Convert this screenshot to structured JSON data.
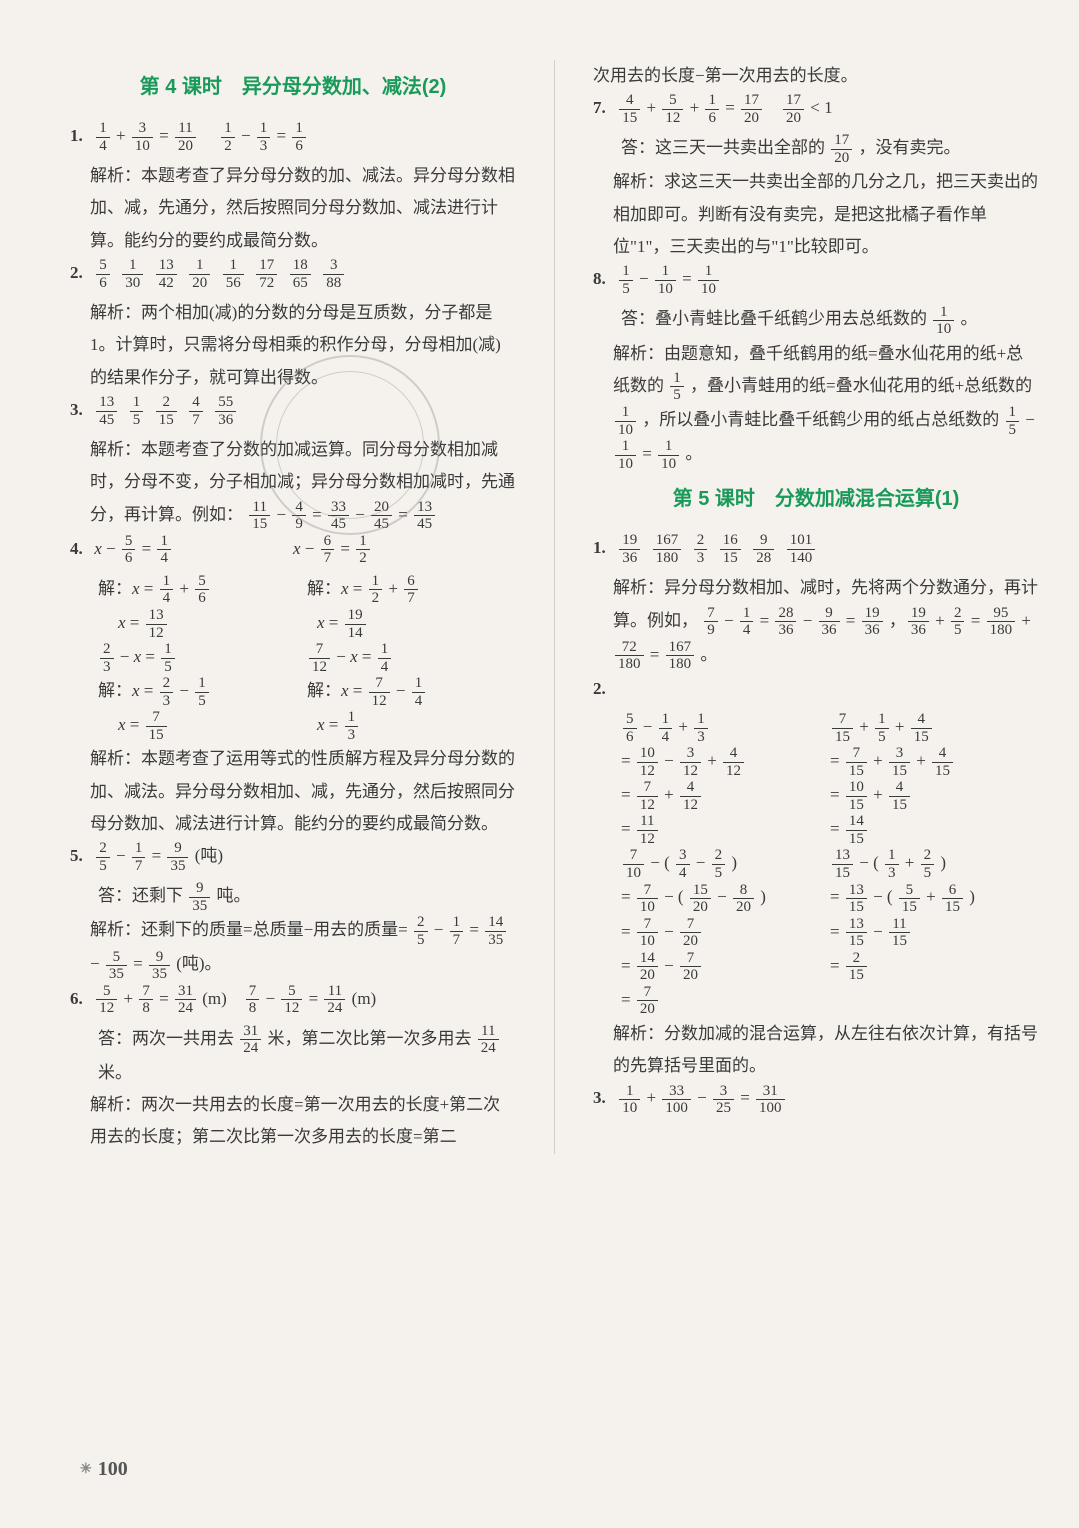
{
  "page_number": "100",
  "left": {
    "title": "第 4 课时　异分母分数加、减法(2)",
    "q1": {
      "num": "1.",
      "eq_a": "1/4 + 3/10 = 11/20",
      "eq_b": "1/2 − 1/3 = 1/6",
      "explain": "解析：本题考查了异分母分数的加、减法。异分母分数相加、减，先通分，然后按照同分母分数加、减法进行计算。能约分的要约成最简分数。"
    },
    "q2": {
      "num": "2.",
      "vals": "5/6　1/30　13/42　1/20　1/56　17/72　18/65　3/88",
      "explain": "解析：两个相加(减)的分数的分母是互质数，分子都是1。计算时，只需将分母相乘的积作分母，分母相加(减)的结果作分子，就可算出得数。"
    },
    "q3": {
      "num": "3.",
      "vals": "13/45　1/5　2/15　4/7　55/36",
      "explain_a": "解析：本题考查了分数的加减运算。同分母分数相加减时，分母不变，分子相加减；异分母分数相加减时，先通分，再计算。例如：",
      "explain_b": "11/15 − 4/9 = 33/45 − 20/45 = 13/45"
    },
    "q4": {
      "num": "4.",
      "eq1_l": "x − 5/6 = 1/4",
      "eq1_r": "x − 6/7 = 1/2",
      "sol1_l1": "解：x = 1/4 + 5/6",
      "sol1_l2": "x = 13/12",
      "sol1_r1": "解：x = 1/2 + 6/7",
      "sol1_r2": "x = 19/14",
      "eq2_l": "2/3 − x = 1/5",
      "eq2_r": "7/12 − x = 1/4",
      "sol2_l1": "解：x = 2/3 − 1/5",
      "sol2_l2": "x = 7/15",
      "sol2_r1": "解：x = 7/12 − 1/4",
      "sol2_r2": "x = 1/3",
      "explain": "解析：本题考查了运用等式的性质解方程及异分母分数的加、减法。异分母分数相加、减，先通分，然后按照同分母分数加、减法进行计算。能约分的要约成最简分数。"
    },
    "q5": {
      "num": "5.",
      "eq": "2/5 − 1/7 = 9/35 (吨)",
      "ans": "答：还剩下 9/35 吨。",
      "explain_a": "解析：还剩下的质量=总质量−用去的质量=",
      "explain_b": "2/5 − 1/7 = 14/35 − 5/35 = 9/35 (吨)。"
    },
    "q6": {
      "num": "6.",
      "eq_a": "5/12 + 7/8 = 31/24 (m)",
      "eq_b": "7/8 − 5/12 = 11/24 (m)",
      "ans": "答：两次一共用去 31/24 米，第二次比第一次多用去 11/24 米。",
      "explain": "解析：两次一共用去的长度=第一次用去的长度+第二次用去的长度；第二次比第一次多用去的长度=第二"
    }
  },
  "right": {
    "cont": "次用去的长度−第一次用去的长度。",
    "q7": {
      "num": "7.",
      "eq": "4/15 + 5/12 + 1/6 = 17/20　　17/20 < 1",
      "ans": "答：这三天一共卖出全部的 17/20 ，没有卖完。",
      "explain": "解析：求这三天一共卖出全部的几分之几，把三天卖出的相加即可。判断有没有卖完，是把这批橘子看作单位\"1\"，三天卖出的与\"1\"比较即可。"
    },
    "q8": {
      "num": "8.",
      "eq": "1/5 − 1/10 = 1/10",
      "ans": "答：叠小青蛙比叠千纸鹤少用去总纸数的 1/10 。",
      "explain": "解析：由题意知，叠千纸鹤用的纸=叠水仙花用的纸+总纸数的 1/5 ，叠小青蛙用的纸=叠水仙花用的纸+总纸数的 1/10 ，所以叠小青蛙比叠千纸鹤少用的纸占总纸数的 1/5 − 1/10 = 1/10 。"
    },
    "title2": "第 5 课时　分数加减混合运算(1)",
    "s5_q1": {
      "num": "1.",
      "vals": "19/36　167/180　2/3　16/15　9/28　101/140",
      "explain_a": "解析：异分母分数相加、减时，先将两个分数通分，再计算。例如，",
      "explain_b": "7/9 − 1/4 = 28/36 − 9/36 = 19/36 ， 19/36 + 2/5 = 95/180 + 72/180 = 167/180 。"
    },
    "s5_q2": {
      "num": "2.",
      "l1_l": "5/6 − 1/4 + 1/3",
      "l1_r": "7/15 + 1/5 + 4/15",
      "l2_l": "= 10/12 − 3/12 + 4/12",
      "l2_r": "= 7/15 + 3/15 + 4/15",
      "l3_l": "= 7/12 + 4/12",
      "l3_r": "= 10/15 + 4/15",
      "l4_l": "= 11/12",
      "l4_r": "= 14/15",
      "m1_l": "7/10 − ( 3/4 − 2/5 )",
      "m1_r": "13/15 − ( 1/3 + 2/5 )",
      "m2_l": "= 7/10 − ( 15/20 − 8/20 )",
      "m2_r": "= 13/15 − ( 5/15 + 6/15 )",
      "m3_l": "= 7/10 − 7/20",
      "m3_r": "= 13/15 − 11/15",
      "m4_l": "= 14/20 − 7/20",
      "m4_r": "= 2/15",
      "m5_l": "= 7/20",
      "explain": "解析：分数加减的混合运算，从左往右依次计算，有括号的先算括号里面的。"
    },
    "s5_q3": {
      "num": "3.",
      "eq": "1/10 + 33/100 − 3/25 = 31/100"
    }
  }
}
